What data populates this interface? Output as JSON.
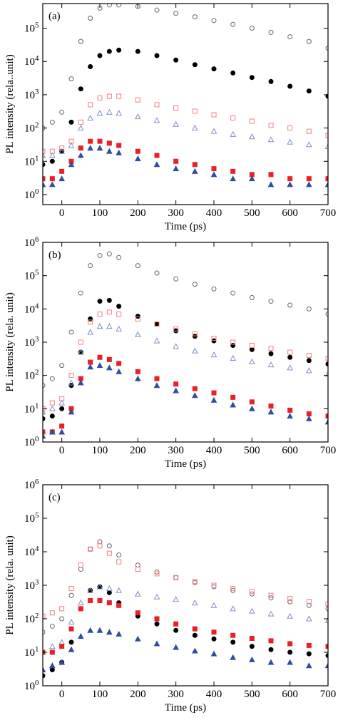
{
  "chart_data": [
    {
      "type": "scatter",
      "annotation": "(a)",
      "xlabel": "Time (ps)",
      "ylabel": "PL intensity (rela..unit)",
      "log_y": true,
      "xlim": [
        -50,
        700
      ],
      "ylim": [
        0.5,
        550000
      ],
      "xticks": [
        0,
        100,
        200,
        300,
        400,
        500,
        600,
        700
      ],
      "yticks": [
        {
          "value": 1,
          "label": "10^0"
        },
        {
          "value": 10,
          "label": "10^1"
        },
        {
          "value": 100,
          "label": "10^2"
        },
        {
          "value": 1000,
          "label": "10^3"
        },
        {
          "value": 10000,
          "label": "10^4"
        },
        {
          "value": 100000,
          "label": "10^5"
        }
      ],
      "x": [
        -50,
        -25,
        0,
        25,
        50,
        75,
        100,
        125,
        150,
        200,
        250,
        300,
        350,
        400,
        450,
        500,
        550,
        600,
        650,
        700
      ],
      "series": [
        {
          "color": "#666666",
          "marker": "circle",
          "filled": false,
          "values": [
            100,
            150,
            300,
            3000,
            40000,
            200000,
            400000,
            500000,
            500000,
            450000,
            350000,
            280000,
            220000,
            170000,
            130000,
            100000,
            75000,
            55000,
            40000,
            25000
          ]
        },
        {
          "color": "#000000",
          "marker": "circle",
          "filled": true,
          "values": [
            8,
            10,
            20,
            150,
            1500,
            7000,
            15000,
            20000,
            22000,
            20000,
            15000,
            11000,
            8000,
            6000,
            4500,
            3300,
            2500,
            1800,
            1300,
            900
          ]
        },
        {
          "color": "#f08080",
          "marker": "square",
          "filled": false,
          "values": [
            20,
            20,
            25,
            40,
            150,
            500,
            800,
            900,
            900,
            700,
            500,
            400,
            320,
            250,
            200,
            160,
            120,
            100,
            80,
            60
          ]
        },
        {
          "color": "#7f8fc8",
          "marker": "triangle",
          "filled": false,
          "values": [
            15,
            15,
            20,
            30,
            100,
            200,
            280,
            300,
            280,
            220,
            170,
            130,
            100,
            80,
            65,
            55,
            45,
            38,
            32,
            28
          ]
        },
        {
          "color": "#e8202a",
          "marker": "square",
          "filled": true,
          "values": [
            3,
            3,
            5,
            10,
            25,
            40,
            40,
            35,
            30,
            20,
            15,
            10,
            8,
            6,
            5,
            4,
            4,
            3,
            3,
            3
          ]
        },
        {
          "color": "#2e4fa0",
          "marker": "triangle",
          "filled": true,
          "values": [
            2,
            2,
            3,
            8,
            15,
            25,
            25,
            20,
            18,
            12,
            8,
            6,
            5,
            4,
            3,
            3,
            2,
            2,
            2,
            2
          ]
        }
      ]
    },
    {
      "type": "scatter",
      "annotation": "(b)",
      "xlabel": "Time (ps)",
      "ylabel": "PL intensity (rela. unit)",
      "log_y": true,
      "xlim": [
        -50,
        700
      ],
      "ylim": [
        1,
        1000000
      ],
      "xticks": [
        0,
        100,
        200,
        300,
        400,
        500,
        600,
        700
      ],
      "yticks": [
        {
          "value": 1,
          "label": "10^0"
        },
        {
          "value": 10,
          "label": "10^1"
        },
        {
          "value": 100,
          "label": "10^2"
        },
        {
          "value": 1000,
          "label": "10^3"
        },
        {
          "value": 10000,
          "label": "10^4"
        },
        {
          "value": 100000,
          "label": "10^5"
        },
        {
          "value": 1000000,
          "label": "10^6"
        }
      ],
      "x": [
        -50,
        -25,
        0,
        25,
        50,
        75,
        100,
        125,
        150,
        200,
        250,
        300,
        350,
        400,
        450,
        500,
        550,
        600,
        650,
        700
      ],
      "series": [
        {
          "color": "#666666",
          "marker": "circle",
          "filled": false,
          "values": [
            50,
            80,
            200,
            2000,
            30000,
            200000,
            400000,
            450000,
            350000,
            200000,
            120000,
            80000,
            55000,
            40000,
            30000,
            22000,
            17000,
            13000,
            10000,
            7000
          ]
        },
        {
          "color": "#000000",
          "marker": "circle",
          "filled": true,
          "values": [
            5,
            6,
            10,
            50,
            500,
            5000,
            17000,
            18000,
            12000,
            6000,
            3500,
            2200,
            1500,
            1100,
            800,
            600,
            450,
            350,
            280,
            220
          ]
        },
        {
          "color": "#f08080",
          "marker": "square",
          "filled": false,
          "values": [
            10,
            15,
            20,
            100,
            1000,
            4000,
            7000,
            8000,
            7000,
            5000,
            3500,
            2500,
            1800,
            1300,
            1000,
            800,
            650,
            500,
            400,
            320
          ]
        },
        {
          "color": "#7f8fc8",
          "marker": "triangle",
          "filled": false,
          "values": [
            8,
            10,
            15,
            60,
            500,
            2000,
            3000,
            3000,
            2500,
            1700,
            1100,
            750,
            550,
            420,
            330,
            260,
            210,
            170,
            140,
            110
          ]
        },
        {
          "color": "#e8202a",
          "marker": "square",
          "filled": true,
          "values": [
            2,
            2,
            3,
            10,
            80,
            250,
            350,
            300,
            230,
            130,
            80,
            55,
            40,
            30,
            22,
            16,
            12,
            9,
            7,
            6
          ]
        },
        {
          "color": "#2e4fa0",
          "marker": "triangle",
          "filled": true,
          "values": [
            1.5,
            2,
            2,
            8,
            60,
            180,
            200,
            170,
            130,
            80,
            50,
            35,
            25,
            18,
            13,
            10,
            8,
            6,
            5,
            4
          ]
        }
      ]
    },
    {
      "type": "scatter",
      "annotation": "(c)",
      "xlabel": "Time (ps)",
      "ylabel": "PL intensity (rela. unit)",
      "log_y": true,
      "xlim": [
        -50,
        700
      ],
      "ylim": [
        1,
        1000000
      ],
      "xticks": [
        0,
        100,
        200,
        300,
        400,
        500,
        600,
        700
      ],
      "yticks": [
        {
          "value": 1,
          "label": "10^0"
        },
        {
          "value": 10,
          "label": "10^1"
        },
        {
          "value": 100,
          "label": "10^2"
        },
        {
          "value": 1000,
          "label": "10^3"
        },
        {
          "value": 10000,
          "label": "10^4"
        },
        {
          "value": 100000,
          "label": "10^5"
        },
        {
          "value": 1000000,
          "label": "10^6"
        }
      ],
      "x": [
        -50,
        -25,
        0,
        25,
        50,
        75,
        100,
        125,
        150,
        200,
        250,
        300,
        350,
        400,
        450,
        500,
        550,
        600,
        650,
        700
      ],
      "series": [
        {
          "color": "#666666",
          "marker": "circle",
          "filled": false,
          "values": [
            40,
            60,
            100,
            500,
            3000,
            12000,
            20000,
            15000,
            8000,
            4000,
            2500,
            1700,
            1200,
            900,
            700,
            550,
            420,
            320,
            250,
            200
          ]
        },
        {
          "color": "#000000",
          "marker": "circle",
          "filled": true,
          "values": [
            2,
            3,
            5,
            20,
            200,
            700,
            900,
            600,
            300,
            120,
            70,
            45,
            32,
            25,
            20,
            15,
            12,
            10,
            9,
            8
          ]
        },
        {
          "color": "#f08080",
          "marker": "square",
          "filled": false,
          "values": [
            120,
            150,
            200,
            800,
            4000,
            12000,
            15000,
            9000,
            5000,
            3000,
            2200,
            1700,
            1300,
            1000,
            800,
            650,
            500,
            400,
            330,
            280
          ]
        },
        {
          "color": "#7f8fc8",
          "marker": "triangle",
          "filled": false,
          "values": [
            10,
            15,
            20,
            80,
            300,
            700,
            900,
            800,
            700,
            550,
            450,
            380,
            300,
            250,
            200,
            170,
            140,
            120,
            100,
            90
          ]
        },
        {
          "color": "#e8202a",
          "marker": "square",
          "filled": true,
          "values": [
            10,
            10,
            15,
            50,
            200,
            350,
            350,
            300,
            250,
            150,
            100,
            70,
            50,
            40,
            32,
            26,
            22,
            18,
            16,
            15
          ]
        },
        {
          "color": "#2e4fa0",
          "marker": "triangle",
          "filled": true,
          "values": [
            3,
            4,
            5,
            12,
            30,
            45,
            45,
            40,
            35,
            25,
            18,
            14,
            11,
            9,
            7,
            6,
            5,
            5,
            4,
            4
          ]
        }
      ]
    }
  ]
}
